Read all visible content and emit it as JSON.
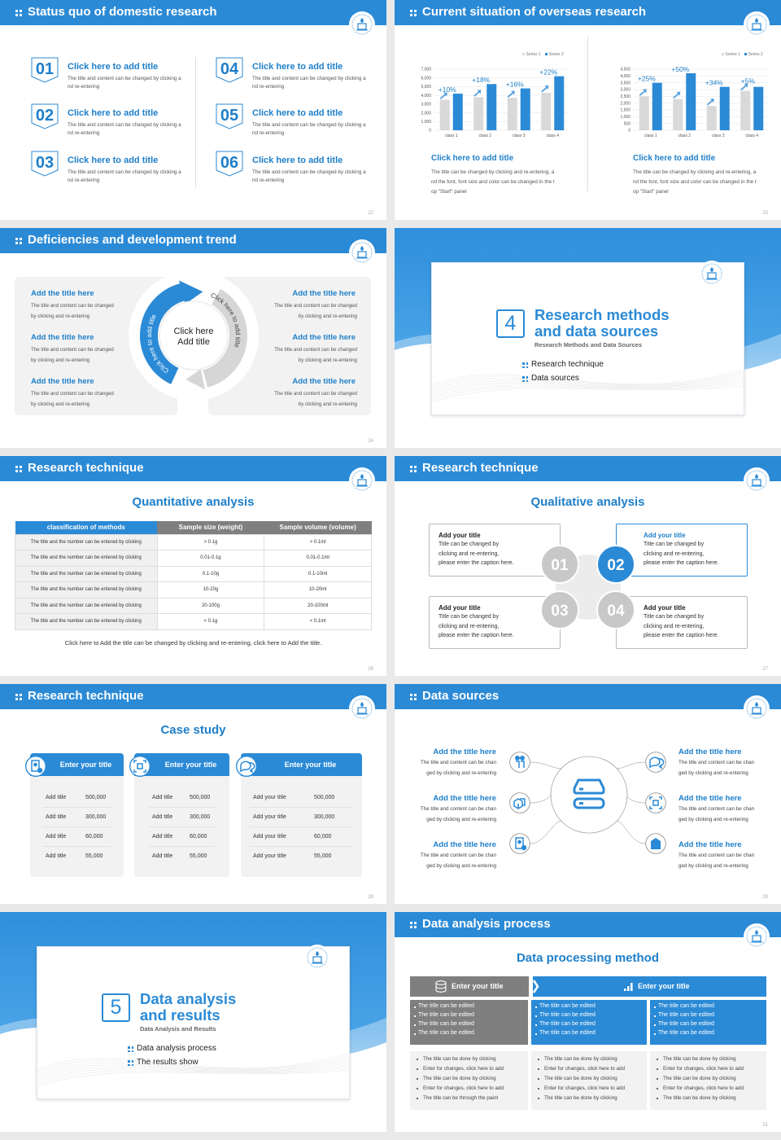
{
  "theme": {
    "blue": "#2b8ad6",
    "gray": "#7f7f7f",
    "light_gray": "#f2f2f2",
    "circle_gray": "#c8c8c8"
  },
  "slides": [
    {
      "page": "22",
      "title": "Status quo of domestic research",
      "items": [
        {
          "num": "01",
          "title": "Click here to add title",
          "desc": "The title and content can be changed by clicking and re-entering"
        },
        {
          "num": "02",
          "title": "Click here to add title",
          "desc": "The title and content can be changed by clicking and re-entering"
        },
        {
          "num": "03",
          "title": "Click here to add title",
          "desc": "The title and content can be changed by clicking and re-entering"
        },
        {
          "num": "04",
          "title": "Click here to add title",
          "desc": "The title and content can be changed by clicking and re-entering"
        },
        {
          "num": "05",
          "title": "Click here to add title",
          "desc": "The title and content can be changed by clicking and re-entering"
        },
        {
          "num": "06",
          "title": "Click here to add title",
          "desc": "The title and content can be changed by clicking and re-entering"
        }
      ]
    },
    {
      "page": "23",
      "title": "Current situation of overseas research",
      "captions": [
        {
          "title": "Click here to add title",
          "desc": "The title can be changed by clicking and re-entering, and the font, font size and color can be changed in the top \"Start\" panel"
        },
        {
          "title": "Click here to add title",
          "desc": "The title can be changed by clicking and re-entering, and the font, font size and color can be changed in the top \"Start\" panel"
        }
      ]
    },
    {
      "page": "24",
      "title": "Deficiencies and development trend",
      "left": [
        {
          "title": "Add the title here",
          "desc": "The title and content can be changed by clicking and re-entering"
        },
        {
          "title": "Add the title here",
          "desc": "The title and content can be changed by clicking and re-entering"
        },
        {
          "title": "Add the title here",
          "desc": "The title and content can be changed by clicking and re-entering"
        }
      ],
      "right": [
        {
          "title": "Add the title here",
          "desc": "The title and content can be changed by clicking and re-entering"
        },
        {
          "title": "Add the title here",
          "desc": "The title and content can be changed by clicking and re-entering"
        },
        {
          "title": "Add the title here",
          "desc": "The title and content can be changed by clicking and re-entering"
        }
      ],
      "center": [
        "Click here",
        "Add title"
      ],
      "arc_left": "Click here to add title",
      "arc_right": "Click here to add title"
    },
    {
      "page": "25",
      "number": "4",
      "title_lines": [
        "Research methods",
        "and data sources"
      ],
      "subtitle": "Research Methods and Data Sources",
      "list": [
        "Research technique",
        "Data sources"
      ]
    },
    {
      "page": "26",
      "title": "Research technique",
      "subtitle": "Quantitative analysis",
      "table": {
        "headers": [
          "classification of methods",
          "Sample size (weight)",
          "Sample volume (volume)"
        ],
        "rows": [
          [
            "The title and the number can be entered by clicking",
            "> 0.1g",
            "> 0.1ml"
          ],
          [
            "The title and the number can be entered by clicking",
            "0.01-0.1g",
            "0.01-0.1ml"
          ],
          [
            "The title and the number can be entered by clicking",
            "0.1-10g",
            "0.1-10ml"
          ],
          [
            "The title and the number can be entered by clicking",
            "10-20g",
            "10-20ml"
          ],
          [
            "The title and the number can be entered by clicking",
            "20-100g",
            "20-100ml"
          ],
          [
            "The title and the number can be entered by clicking",
            "< 0.1g",
            "< 0.1ml"
          ]
        ]
      },
      "caption": "Click here to Add the title can be changed by clicking and re-entering, click here to Add the title."
    },
    {
      "page": "27",
      "title": "Research technique",
      "subtitle": "Qualitative analysis",
      "items": [
        {
          "num": "01",
          "title": "Add your title",
          "lines": [
            "Title can be changed by",
            "clicking and re-entering,",
            "please enter the caption here."
          ]
        },
        {
          "num": "02",
          "title": "Add your title",
          "lines": [
            "Title can be changed by",
            "clicking and re-entering,",
            "please enter the caption here."
          ],
          "highlight": true
        },
        {
          "num": "03",
          "title": "Add your title",
          "lines": [
            "Title can be changed by",
            "clicking and re-entering,",
            "please enter the caption here."
          ]
        },
        {
          "num": "04",
          "title": "Add your title",
          "lines": [
            "Title can be changed by",
            "clicking and re-entering,",
            "please enter the caption here."
          ]
        }
      ]
    },
    {
      "page": "28",
      "title": "Research technique",
      "subtitle": "Case study",
      "cards": [
        {
          "title": "Enter your title",
          "icon": "phone-user-icon",
          "rows": [
            [
              "Add title",
              "500,000"
            ],
            [
              "Add title",
              "300,000"
            ],
            [
              "Add title",
              "60,000"
            ],
            [
              "Add title",
              "55,000"
            ]
          ]
        },
        {
          "title": "Enter your title",
          "icon": "qr-scan-icon",
          "rows": [
            [
              "Add title",
              "500,000"
            ],
            [
              "Add title",
              "300,000"
            ],
            [
              "Add title",
              "60,000"
            ],
            [
              "Add title",
              "55,000"
            ]
          ]
        },
        {
          "title": "Enter your title",
          "icon": "chat-bubbles-icon",
          "rows": [
            [
              "Add your title",
              "500,000"
            ],
            [
              "Add your title",
              "300,000"
            ],
            [
              "Add your title",
              "60,000"
            ],
            [
              "Add your title",
              "55,000"
            ]
          ]
        }
      ]
    },
    {
      "page": "29",
      "title": "Data sources",
      "left": [
        {
          "title": "Add the title here",
          "lines": [
            "The title and content can be chan",
            "ged by clicking and re-entering"
          ],
          "icon": "people-icon"
        },
        {
          "title": "Add the title here",
          "lines": [
            "The title and content can be chan",
            "ged by clicking and re-entering"
          ],
          "icon": "boxes-icon"
        },
        {
          "title": "Add the title here",
          "lines": [
            "The title and content can be chan",
            "ged by clicking and re-entering"
          ],
          "icon": "id-card-icon"
        }
      ],
      "right": [
        {
          "title": "Add the title here",
          "lines": [
            "The title and content can be chan",
            "ged by clicking and re-entering"
          ],
          "icon": "chat-bubbles-icon"
        },
        {
          "title": "Add the title here",
          "lines": [
            "The title and content can be chan",
            "ged by clicking and re-entering"
          ],
          "icon": "qr-scan-icon"
        },
        {
          "title": "Add the title here",
          "lines": [
            "The title and content can be chan",
            "ged by clicking and re-entering"
          ],
          "icon": "building-icon"
        }
      ],
      "center_icon": "server-icon"
    },
    {
      "page": "30",
      "number": "5",
      "title_lines": [
        "Data analysis",
        "and results"
      ],
      "subtitle": "Data Analysis and Results",
      "list": [
        "Data analysis process",
        "The results show"
      ]
    },
    {
      "page": "31",
      "title": "Data analysis process",
      "subtitle": "Data processing method",
      "headers": [
        "Enter your title",
        "Enter your title"
      ],
      "top_boxes": [
        [
          "The title can be edited",
          "The title can be edited",
          "The title can be edited",
          "The title can be edited"
        ],
        [
          "The title can be edited",
          "The title can be edited",
          "The title can be edited",
          "The title can be edited"
        ],
        [
          "The title can be edited",
          "The title can be edited",
          "The title can be edited",
          "The title can be edited"
        ]
      ],
      "bottom_boxes": [
        [
          "The title can be done by clicking",
          "Enter for changes, click here to add",
          "The title can be done by clicking",
          "Enter for changes, click here to add",
          "The title can be through the paint"
        ],
        [
          "The title can be done by clicking",
          "Enter for changes, click here to add",
          "The title can be done by clicking",
          "Enter for changes, click here to add",
          "The title can be done by clicking"
        ],
        [
          "The title can be done by clicking",
          "Enter for changes, click here to add",
          "The title can be done by clicking",
          "Enter for changes, click here to add",
          "The title can be done by clicking"
        ]
      ]
    }
  ],
  "chart_data": [
    {
      "type": "bar",
      "categories": [
        "class 1",
        "class 2",
        "class 3",
        "class 4"
      ],
      "series": [
        {
          "name": "Series 1",
          "values": [
            3500,
            3800,
            3700,
            4300
          ],
          "color": "#d9d9d9"
        },
        {
          "name": "Series 2",
          "values": [
            4200,
            5300,
            4800,
            6200
          ],
          "color": "#2b8ad6"
        }
      ],
      "annotations": [
        "+10%",
        "+18%",
        "+16%",
        "+22%"
      ],
      "ylim": [
        0,
        7000
      ],
      "yticks": [
        "0",
        "1,000",
        "2,000",
        "3,000",
        "4,000",
        "5,000",
        "6,000",
        "7,000"
      ],
      "legend": "top-right",
      "grid": true
    },
    {
      "type": "bar",
      "categories": [
        "class 1",
        "class 2",
        "class 3",
        "class 4"
      ],
      "series": [
        {
          "name": "Series 1",
          "values": [
            2500,
            2300,
            1800,
            2900
          ],
          "color": "#d9d9d9"
        },
        {
          "name": "Series 2",
          "values": [
            3500,
            4200,
            3200,
            3200
          ],
          "color": "#2b8ad6"
        }
      ],
      "annotations": [
        "+25%",
        "+50%",
        "+34%",
        "+5%"
      ],
      "ylim": [
        0,
        4500
      ],
      "yticks": [
        "0",
        "500",
        "1,000",
        "1,500",
        "2,000",
        "2,500",
        "3,000",
        "3,500",
        "4,000",
        "4,500"
      ],
      "legend": "top-right",
      "grid": true
    }
  ]
}
